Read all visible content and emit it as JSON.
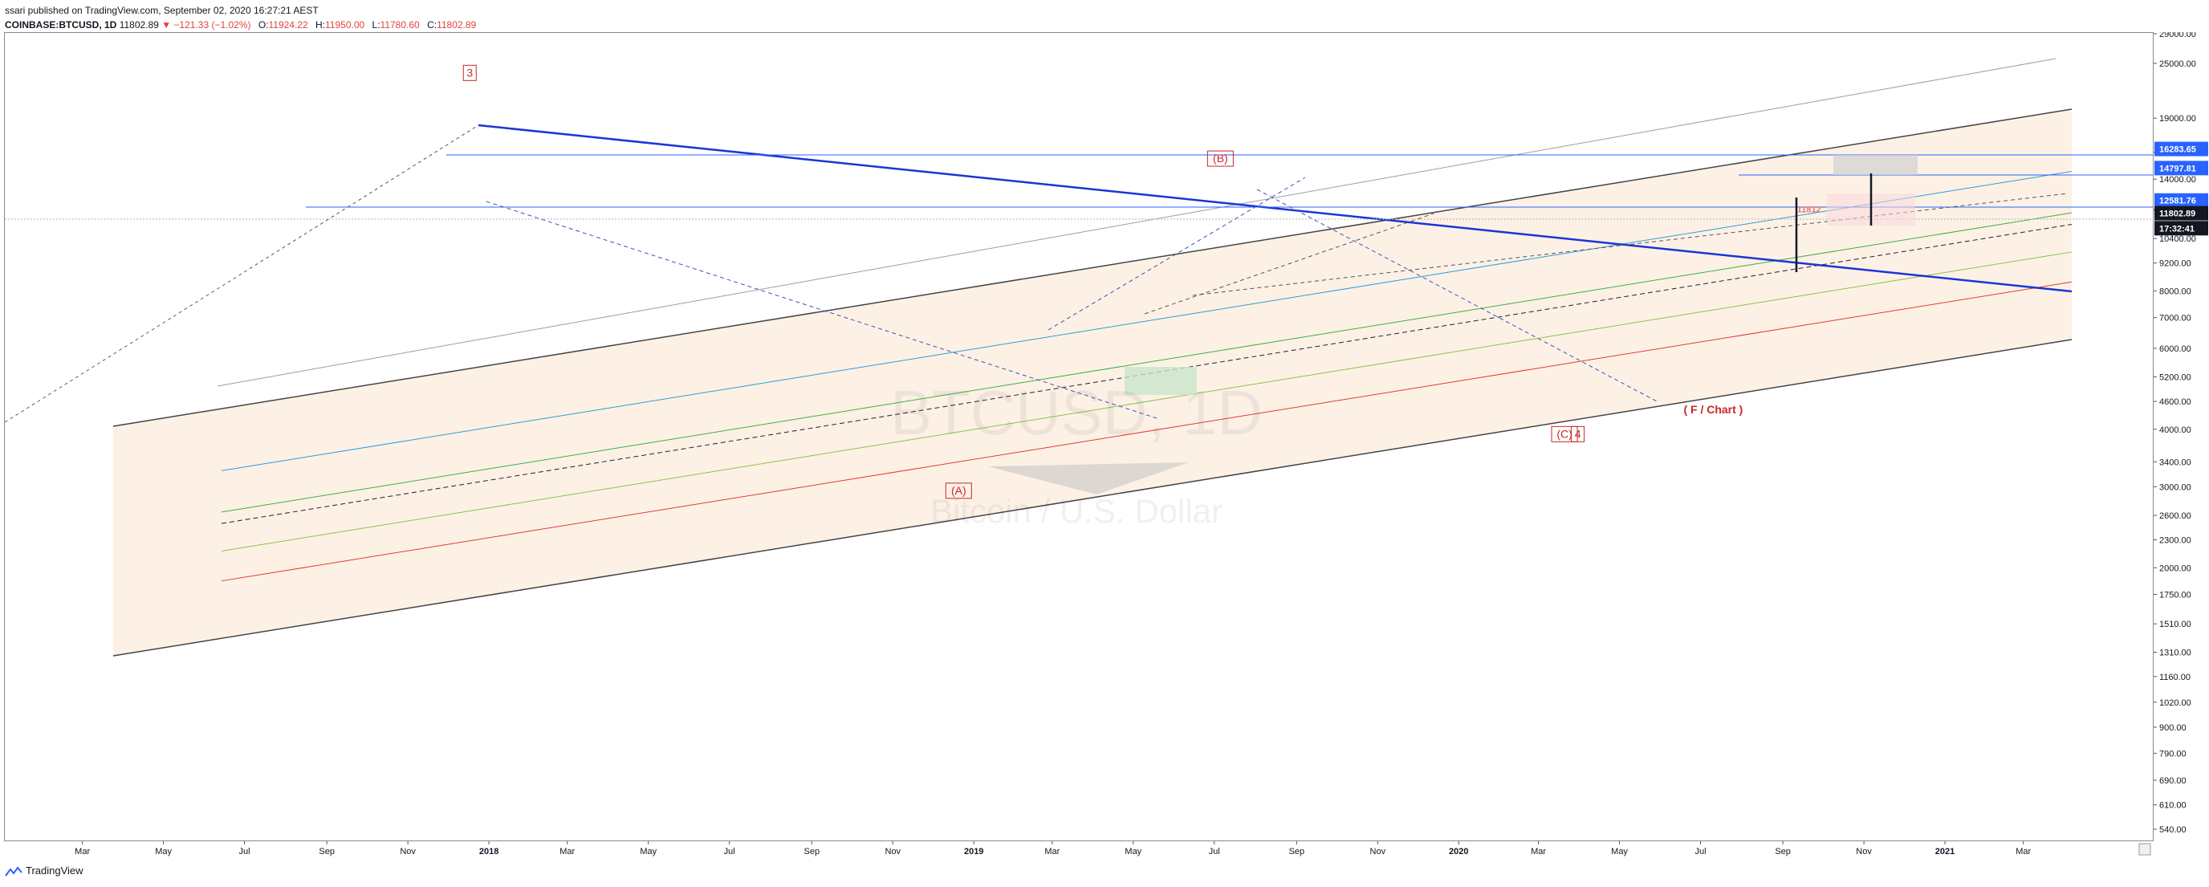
{
  "header": {
    "published_line": "ssari published on TradingView.com, September 02, 2020 16:27:21 AEST",
    "symbol": "COINBASE:BTCUSD, 1D",
    "last": "11802.89",
    "change": "▼ −121.33 (−1.02%)",
    "open_label": "O:",
    "open": "11924.22",
    "high_label": "H:",
    "high": "11950.00",
    "low_label": "L:",
    "low": "11780.60",
    "close_label": "C:",
    "close": "11802.89"
  },
  "watermark": {
    "symbol": "BTCUSD, 1D",
    "description": "Bitcoin / U.S. Dollar"
  },
  "footer": {
    "brand": "TradingView"
  },
  "colors": {
    "accent": "#2962ff",
    "trendline": "#1a35d6",
    "negative": "#e0443b",
    "candle_up": "#f0a830",
    "candle_down": "#131722",
    "channel_fill": "#fdf1e6",
    "label_red": "#c62828"
  },
  "chart_data": {
    "type": "candlestick",
    "symbol": "COINBASE:BTCUSD",
    "interval": "1D",
    "y_scale": "log",
    "ylim": [
      540,
      29000
    ],
    "xlim": [
      "2017-01-01",
      "2021-04-30"
    ],
    "grid": false,
    "price_ticks": [
      "29000.00",
      "25000.00",
      "19000.00",
      "16000.00",
      "14000.00",
      "12000.00",
      "10400.00",
      "9200.00",
      "8000.00",
      "7000.00",
      "6000.00",
      "5200.00",
      "4600.00",
      "4000.00",
      "3400.00",
      "3000.00",
      "2600.00",
      "2300.00",
      "2000.00",
      "1750.00",
      "1510.00",
      "1310.00",
      "1160.00",
      "1020.00",
      "900.00",
      "790.00",
      "690.00",
      "610.00",
      "540.00"
    ],
    "price_tick_values": [
      29000,
      25000,
      19000,
      16000,
      14000,
      12000,
      10400,
      9200,
      8000,
      7000,
      6000,
      5200,
      4600,
      4000,
      3400,
      3000,
      2600,
      2300,
      2000,
      1750,
      1510,
      1310,
      1160,
      1020,
      900,
      790,
      690,
      610,
      540
    ],
    "price_labels": [
      {
        "text": "12581.76",
        "value": 12581.76,
        "bg": "#2962ff"
      },
      {
        "text": "16283.65",
        "value": 16283.65,
        "bg": "#2962ff"
      },
      {
        "text": "14797.81",
        "value": 14797.81,
        "bg": "#2962ff"
      },
      {
        "text": "11802.89",
        "value": 11802.89,
        "bg": "#131722"
      },
      {
        "text": "17:32:41",
        "value": 10950,
        "bg": "#131722"
      }
    ],
    "time_ticks": [
      {
        "label": "Mar",
        "date": "2017-03-01"
      },
      {
        "label": "May",
        "date": "2017-05-01"
      },
      {
        "label": "Jul",
        "date": "2017-07-01"
      },
      {
        "label": "Sep",
        "date": "2017-09-01"
      },
      {
        "label": "Nov",
        "date": "2017-11-01"
      },
      {
        "label": "2018",
        "date": "2018-01-01"
      },
      {
        "label": "Mar",
        "date": "2018-03-01"
      },
      {
        "label": "May",
        "date": "2018-05-01"
      },
      {
        "label": "Jul",
        "date": "2018-07-01"
      },
      {
        "label": "Sep",
        "date": "2018-09-01"
      },
      {
        "label": "Nov",
        "date": "2018-11-01"
      },
      {
        "label": "2019",
        "date": "2019-01-01"
      },
      {
        "label": "Mar",
        "date": "2019-03-01"
      },
      {
        "label": "May",
        "date": "2019-05-01"
      },
      {
        "label": "Jul",
        "date": "2019-07-01"
      },
      {
        "label": "Sep",
        "date": "2019-09-01"
      },
      {
        "label": "Nov",
        "date": "2019-11-01"
      },
      {
        "label": "2020",
        "date": "2020-01-01"
      },
      {
        "label": "Mar",
        "date": "2020-03-01"
      },
      {
        "label": "May",
        "date": "2020-05-01"
      },
      {
        "label": "Jul",
        "date": "2020-07-01"
      },
      {
        "label": "Sep",
        "date": "2020-09-01"
      },
      {
        "label": "Nov",
        "date": "2020-11-01"
      },
      {
        "label": "2021",
        "date": "2021-01-01"
      },
      {
        "label": "Mar",
        "date": "2021-03-01"
      }
    ],
    "price_path": [
      [
        "2017-01-01",
        800
      ],
      [
        "2017-01-20",
        900
      ],
      [
        "2017-02-10",
        1000
      ],
      [
        "2017-03-01",
        1150
      ],
      [
        "2017-03-20",
        1000
      ],
      [
        "2017-04-10",
        1200
      ],
      [
        "2017-05-01",
        1400
      ],
      [
        "2017-05-25",
        2300
      ],
      [
        "2017-06-12",
        2900
      ],
      [
        "2017-07-01",
        2450
      ],
      [
        "2017-07-16",
        1900
      ],
      [
        "2017-08-01",
        2800
      ],
      [
        "2017-08-15",
        4200
      ],
      [
        "2017-09-01",
        4800
      ],
      [
        "2017-09-15",
        3300
      ],
      [
        "2017-10-01",
        4300
      ],
      [
        "2017-10-20",
        6000
      ],
      [
        "2017-11-12",
        6000
      ],
      [
        "2017-11-28",
        10000
      ],
      [
        "2017-12-17",
        19000
      ],
      [
        "2017-12-22",
        14000
      ],
      [
        "2018-01-06",
        17000
      ],
      [
        "2018-01-20",
        11500
      ],
      [
        "2018-02-06",
        6500
      ],
      [
        "2018-02-20",
        11000
      ],
      [
        "2018-03-05",
        11500
      ],
      [
        "2018-04-01",
        6800
      ],
      [
        "2018-04-20",
        8900
      ],
      [
        "2018-05-05",
        9800
      ],
      [
        "2018-06-01",
        7500
      ],
      [
        "2018-06-29",
        5800
      ],
      [
        "2018-07-25",
        8400
      ],
      [
        "2018-08-15",
        6300
      ],
      [
        "2018-09-05",
        7400
      ],
      [
        "2018-10-15",
        6500
      ],
      [
        "2018-11-10",
        6400
      ],
      [
        "2018-11-25",
        3900
      ],
      [
        "2018-12-15",
        3200
      ],
      [
        "2019-01-10",
        4000
      ],
      [
        "2019-02-10",
        3500
      ],
      [
        "2019-03-15",
        4000
      ],
      [
        "2019-04-05",
        5000
      ],
      [
        "2019-05-01",
        5500
      ],
      [
        "2019-05-30",
        8500
      ],
      [
        "2019-06-26",
        13800
      ],
      [
        "2019-07-16",
        9500
      ],
      [
        "2019-08-06",
        11900
      ],
      [
        "2019-09-15",
        10300
      ],
      [
        "2019-09-26",
        8000
      ],
      [
        "2019-10-26",
        9500
      ],
      [
        "2019-11-25",
        7000
      ],
      [
        "2019-12-18",
        6500
      ],
      [
        "2020-01-15",
        8800
      ],
      [
        "2020-02-13",
        10400
      ],
      [
        "2020-03-01",
        8600
      ],
      [
        "2020-03-13",
        3800
      ],
      [
        "2020-03-25",
        6700
      ],
      [
        "2020-04-15",
        6800
      ],
      [
        "2020-05-08",
        9900
      ],
      [
        "2020-05-25",
        8700
      ],
      [
        "2020-06-02",
        10200
      ],
      [
        "2020-06-27",
        9000
      ],
      [
        "2020-07-21",
        9400
      ],
      [
        "2020-07-28",
        11000
      ],
      [
        "2020-08-02",
        12000
      ],
      [
        "2020-08-17",
        12400
      ],
      [
        "2020-09-02",
        11802.89
      ]
    ],
    "annotations": [
      {
        "text": "3",
        "date": "2017-12-17",
        "price": 23500,
        "boxed": true
      },
      {
        "text": "(B)",
        "date": "2019-07-05",
        "price": 15300,
        "boxed": true
      },
      {
        "text": "(A)",
        "date": "2018-12-20",
        "price": 2900,
        "boxed": true
      },
      {
        "text": "(C)",
        "date": "2020-03-20",
        "price": 3850,
        "boxed": true
      },
      {
        "text": "4",
        "date": "2020-03-30",
        "price": 3850,
        "boxed": true
      },
      {
        "text": "( F / Chart )",
        "date": "2020-07-10",
        "price": 4350,
        "boxed": false
      },
      {
        "text": "11812",
        "date": "2020-09-20",
        "price": 11900,
        "boxed": false,
        "small": true
      }
    ]
  }
}
